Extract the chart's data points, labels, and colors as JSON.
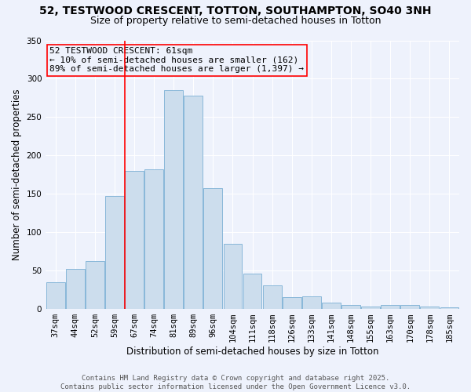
{
  "title_line1": "52, TESTWOOD CRESCENT, TOTTON, SOUTHAMPTON, SO40 3NH",
  "title_line2": "Size of property relative to semi-detached houses in Totton",
  "xlabel": "Distribution of semi-detached houses by size in Totton",
  "ylabel": "Number of semi-detached properties",
  "bin_labels": [
    "37sqm",
    "44sqm",
    "52sqm",
    "59sqm",
    "67sqm",
    "74sqm",
    "81sqm",
    "89sqm",
    "96sqm",
    "104sqm",
    "111sqm",
    "118sqm",
    "126sqm",
    "133sqm",
    "141sqm",
    "148sqm",
    "155sqm",
    "163sqm",
    "170sqm",
    "178sqm",
    "185sqm"
  ],
  "bar_heights": [
    35,
    52,
    62,
    147,
    180,
    182,
    285,
    278,
    157,
    85,
    46,
    31,
    15,
    16,
    8,
    5,
    3,
    5,
    5,
    3,
    2
  ],
  "bar_color": "#ccdded",
  "bar_edgecolor": "#7bafd4",
  "red_line_x": 3.5,
  "annotation_text": "52 TESTWOOD CRESCENT: 61sqm\n← 10% of semi-detached houses are smaller (162)\n89% of semi-detached houses are larger (1,397) →",
  "ylim": [
    0,
    350
  ],
  "yticks": [
    0,
    50,
    100,
    150,
    200,
    250,
    300,
    350
  ],
  "background_color": "#eef2fc",
  "footer_text": "Contains HM Land Registry data © Crown copyright and database right 2025.\nContains public sector information licensed under the Open Government Licence v3.0.",
  "title_fontsize": 10,
  "subtitle_fontsize": 9,
  "axis_label_fontsize": 8.5,
  "tick_fontsize": 7.5,
  "annotation_fontsize": 8,
  "footer_fontsize": 6.5
}
